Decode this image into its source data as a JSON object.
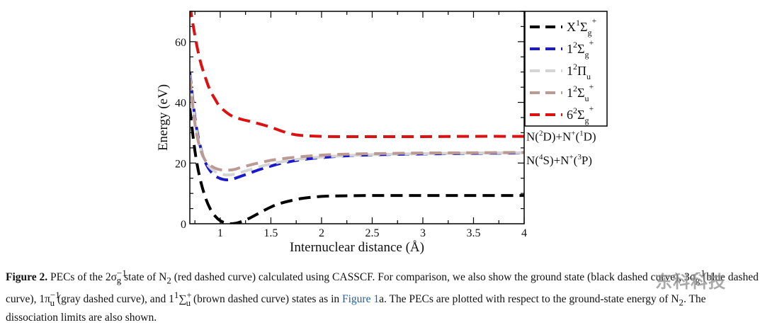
{
  "chart_data": {
    "type": "line",
    "xlabel": "Internuclear distance (Å)",
    "ylabel": "Energy (eV)",
    "xlim": [
      0.7,
      4.0
    ],
    "ylim": [
      0,
      70
    ],
    "x_ticks": [
      1,
      1.5,
      2,
      2.5,
      3,
      3.5,
      4
    ],
    "x_tick_labels": [
      "1",
      "1.5",
      "2",
      "2.5",
      "3",
      "3.5",
      "4"
    ],
    "y_ticks": [
      0,
      20,
      40,
      60
    ],
    "y_tick_labels": [
      "0",
      "20",
      "40",
      "60"
    ],
    "legend_position": "outside-right",
    "series": [
      {
        "key": "ground",
        "color": "#000000",
        "x": [
          0.7,
          0.75,
          0.8,
          0.85,
          0.9,
          0.95,
          1.0,
          1.05,
          1.1,
          1.15,
          1.2,
          1.3,
          1.4,
          1.5,
          1.6,
          1.8,
          2.0,
          2.2,
          2.5,
          3.0,
          3.5,
          4.0
        ],
        "y": [
          38,
          24,
          15,
          9,
          5,
          2.5,
          1.0,
          0.3,
          0.0,
          0.15,
          0.6,
          2.0,
          3.8,
          5.5,
          6.8,
          8.3,
          9.0,
          9.2,
          9.3,
          9.3,
          9.3,
          9.3
        ]
      },
      {
        "key": "blue",
        "color": "#1a1acc",
        "x": [
          0.7,
          0.75,
          0.8,
          0.85,
          0.9,
          0.95,
          1.0,
          1.05,
          1.1,
          1.15,
          1.2,
          1.3,
          1.4,
          1.5,
          1.6,
          1.8,
          2.0,
          2.2,
          2.5,
          3.0,
          3.5,
          4.0
        ],
        "y": [
          50,
          35,
          26,
          20.5,
          17.5,
          15.8,
          14.9,
          14.5,
          14.6,
          15.0,
          15.6,
          16.8,
          18.0,
          19.0,
          19.9,
          21.1,
          21.8,
          22.3,
          22.7,
          23.0,
          23.2,
          23.3
        ]
      },
      {
        "key": "gray",
        "color": "#d4d4d4",
        "x": [
          0.7,
          0.75,
          0.8,
          0.85,
          0.9,
          0.95,
          1.0,
          1.05,
          1.1,
          1.15,
          1.2,
          1.3,
          1.4,
          1.5,
          1.6,
          1.8,
          2.0,
          2.2,
          2.5,
          3.0,
          3.5,
          4.0
        ],
        "y": [
          49,
          34,
          25.5,
          20.8,
          18.5,
          17.2,
          16.5,
          16.1,
          16.1,
          16.4,
          16.9,
          17.9,
          18.9,
          19.7,
          20.4,
          21.4,
          22.0,
          22.4,
          22.8,
          23.1,
          23.3,
          23.4
        ]
      },
      {
        "key": "brown",
        "color": "#bc9a94",
        "x": [
          0.7,
          0.75,
          0.8,
          0.85,
          0.9,
          0.95,
          1.0,
          1.05,
          1.1,
          1.15,
          1.2,
          1.3,
          1.4,
          1.5,
          1.6,
          1.8,
          2.0,
          2.2,
          2.5,
          3.0,
          3.5,
          4.0
        ],
        "y": [
          48,
          33,
          25,
          21,
          19.3,
          18.3,
          17.8,
          17.6,
          17.7,
          18.0,
          18.5,
          19.4,
          20.2,
          20.9,
          21.4,
          22.1,
          22.6,
          22.9,
          23.1,
          23.3,
          23.4,
          23.5
        ]
      },
      {
        "key": "red",
        "color": "#dd1111",
        "x": [
          0.7,
          0.75,
          0.8,
          0.85,
          0.9,
          0.95,
          1.0,
          1.1,
          1.2,
          1.3,
          1.4,
          1.5,
          1.6,
          1.7,
          1.8,
          2.0,
          2.2,
          2.5,
          3.0,
          3.5,
          4.0
        ],
        "y": [
          72,
          62,
          54,
          48.5,
          44,
          41,
          38.5,
          35.8,
          34.5,
          33.7,
          32.8,
          31.8,
          30.6,
          29.6,
          29.1,
          28.8,
          28.7,
          28.7,
          28.7,
          28.8,
          28.8
        ]
      }
    ],
    "legend": [
      {
        "key": "ground",
        "color": "#000000",
        "pre": "X",
        "sup1": "1",
        "sym": "Σ",
        "sub": "g",
        "sup2": "+"
      },
      {
        "key": "blue",
        "color": "#1a1acc",
        "pre": "1",
        "sup1": "2",
        "sym": "Σ",
        "sub": "g",
        "sup2": "+"
      },
      {
        "key": "gray",
        "color": "#d4d4d4",
        "pre": "1",
        "sup1": "2",
        "sym": "Π",
        "sub": "u",
        "sup2": ""
      },
      {
        "key": "brown",
        "color": "#bc9a94",
        "pre": "1",
        "sup1": "2",
        "sym": "Σ",
        "sub": "u",
        "sup2": "+"
      },
      {
        "key": "red",
        "color": "#dd1111",
        "pre": "6",
        "sup1": "2",
        "sym": "Σ",
        "sub": "g",
        "sup2": "+"
      }
    ],
    "annotations": [
      {
        "name": "limit-n2d",
        "y": 28.8,
        "parts": [
          "N(",
          "2",
          "D)+N",
          "+",
          "(",
          "1",
          "D)"
        ]
      },
      {
        "name": "limit-n4s",
        "y": 21.0,
        "parts": [
          "N(",
          "4",
          "S)+N",
          "+",
          "(",
          "3",
          "P)"
        ]
      }
    ]
  },
  "caption": {
    "lead": "Figure 2.",
    "text1": " PECs of the 2σ",
    "sup1": "−1",
    "sub1": "g",
    "text2": " state of N",
    "sub2": "2",
    "text3": " (red dashed curve) calculated using CASSCF. For comparison, we also show the ground state (black dashed curve), 3σ",
    "sup3": "−1",
    "sub3": "g",
    "text4": " (blue dashed curve), 1π",
    "sup4": "−1",
    "sub4": "u",
    "text5": " (gray dashed curve), and 1",
    "sup5": "1",
    "sym5": "∑",
    "sup5b": "+",
    "sub5": "u",
    "text6": " (brown dashed curve) states as in ",
    "link": "Figure 1",
    "text7": "a. The PECs are plotted with respect to the ground-state energy of N",
    "sub7": "2",
    "text8": ". The dissociation limits are also shown."
  },
  "watermark": "东科科技"
}
